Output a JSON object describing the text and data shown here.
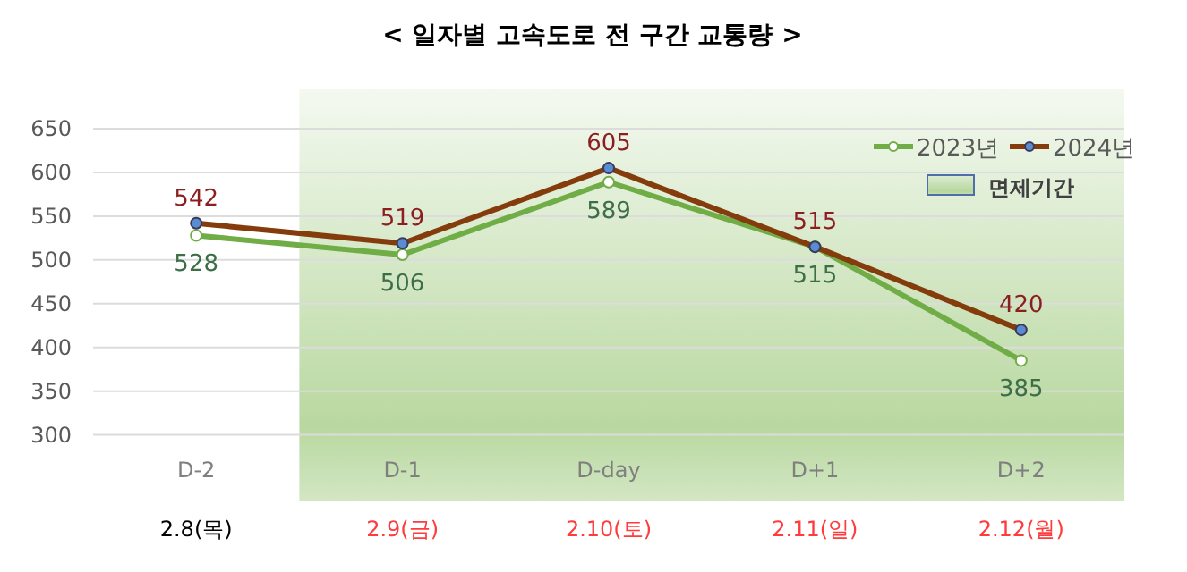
{
  "chart_data": {
    "type": "line",
    "title": "< 일자별 고속도로 전 구간 교통량 >",
    "categories": [
      "D-2",
      "D-1",
      "D-day",
      "D+1",
      "D+2"
    ],
    "series": [
      {
        "name": "2023년",
        "color": "#70ad47",
        "values": [
          528,
          506,
          589,
          515,
          385
        ]
      },
      {
        "name": "2024년",
        "color": "#843c0c",
        "values": [
          542,
          519,
          605,
          515,
          420
        ]
      }
    ],
    "ylim": [
      225,
      695
    ],
    "yticks": [
      300,
      350,
      400,
      450,
      500,
      550,
      600,
      650
    ],
    "grid": "y",
    "legend": "top right",
    "marker": "circle",
    "line_style": "solid",
    "data_labels": true,
    "bands": [
      {
        "axis": "x",
        "from": "D-1",
        "to": "D+2",
        "label": "면제기간",
        "color": "#b5d69b"
      }
    ],
    "annotations": [
      "2.8(목)",
      "2.9(금)",
      "2.10(토)",
      "2.11(일)",
      "2.12(월)"
    ]
  }
}
